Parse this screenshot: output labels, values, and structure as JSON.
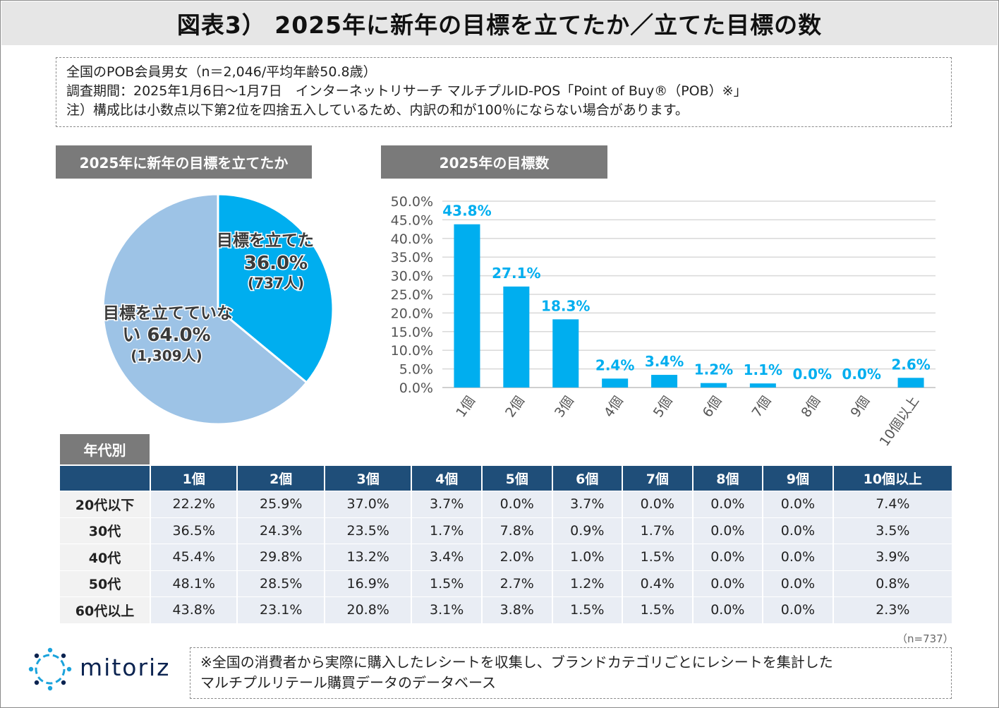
{
  "title": "図表3） 2025年に新年の目標を立てたか／立てた目標の数",
  "meta": {
    "line1": "全国のPOB会員男女（n＝2,046/平均年齢50.8歳）",
    "line2": "調査期間：2025年1月6日～1月7日　インターネットリサーチ マルチプルID-POS「Point of Buy®（POB）※」",
    "line3": "注）構成比は小数点以下第2位を四捨五入しているため、内訳の和が100％にならない場合があります。"
  },
  "colors": {
    "pie_set": "#00aeef",
    "pie_notset": "#9dc3e6",
    "bar": "#00aeef",
    "bar_label": "#00aeef",
    "table_header": "#1f4e79"
  },
  "chart_data": [
    {
      "type": "pie",
      "title": "2025年に新年の目標を立てたか",
      "slices": [
        {
          "name": "目標を立てた",
          "value": 36.0,
          "display": "36.0%",
          "count": "(737人)"
        },
        {
          "name": "目標を立てていない",
          "value": 64.0,
          "display": "64.0%",
          "count": "(1,309人)"
        }
      ],
      "label_lines": {
        "set_line1": "目標を立てた",
        "set_line2": "36.0%",
        "set_line3": "(737人)",
        "notset_line1": "目標を立てていな",
        "notset_line2": "い 64.0%",
        "notset_line3": "(1,309人)"
      }
    },
    {
      "type": "bar",
      "title": "2025年の目標数",
      "categories": [
        "1個",
        "2個",
        "3個",
        "4個",
        "5個",
        "6個",
        "7個",
        "8個",
        "9個",
        "10個以上"
      ],
      "values": [
        43.8,
        27.1,
        18.3,
        2.4,
        3.4,
        1.2,
        1.1,
        0.0,
        0.0,
        2.6
      ],
      "value_labels": [
        "43.8%",
        "27.1%",
        "18.3%",
        "2.4%",
        "3.4%",
        "1.2%",
        "1.1%",
        "0.0%",
        "0.0%",
        "2.6%"
      ],
      "ylim": [
        0,
        50
      ],
      "yticks": [
        "0.0%",
        "5.0%",
        "10.0%",
        "15.0%",
        "20.0%",
        "25.0%",
        "30.0%",
        "35.0%",
        "40.0%",
        "45.0%",
        "50.0%"
      ],
      "grid": true
    },
    {
      "type": "table",
      "title": "年代別",
      "columns": [
        "1個",
        "2個",
        "3個",
        "4個",
        "5個",
        "6個",
        "7個",
        "8個",
        "9個",
        "10個以上"
      ],
      "rows": [
        {
          "label": "20代以下",
          "values": [
            "22.2%",
            "25.9%",
            "37.0%",
            "3.7%",
            "0.0%",
            "3.7%",
            "0.0%",
            "0.0%",
            "0.0%",
            "7.4%"
          ]
        },
        {
          "label": "30代",
          "values": [
            "36.5%",
            "24.3%",
            "23.5%",
            "1.7%",
            "7.8%",
            "0.9%",
            "1.7%",
            "0.0%",
            "0.0%",
            "3.5%"
          ]
        },
        {
          "label": "40代",
          "values": [
            "45.4%",
            "29.8%",
            "13.2%",
            "3.4%",
            "2.0%",
            "1.0%",
            "1.5%",
            "0.0%",
            "0.0%",
            "3.9%"
          ]
        },
        {
          "label": "50代",
          "values": [
            "48.1%",
            "28.5%",
            "16.9%",
            "1.5%",
            "2.7%",
            "1.2%",
            "0.4%",
            "0.0%",
            "0.0%",
            "0.8%"
          ]
        },
        {
          "label": "60代以上",
          "values": [
            "43.8%",
            "23.1%",
            "20.8%",
            "3.1%",
            "3.8%",
            "1.5%",
            "1.5%",
            "0.0%",
            "0.0%",
            "2.3%"
          ]
        }
      ]
    }
  ],
  "n_note": "（n=737）",
  "logo": {
    "text": "mitoriz",
    "icon": "sun-burst-logo-icon"
  },
  "footnote": {
    "line1": "※全国の消費者から実際に購入したレシートを収集し、ブランドカテゴリごとにレシートを集計した",
    "line2": "マルチプルリテール購買データのデータベース"
  }
}
